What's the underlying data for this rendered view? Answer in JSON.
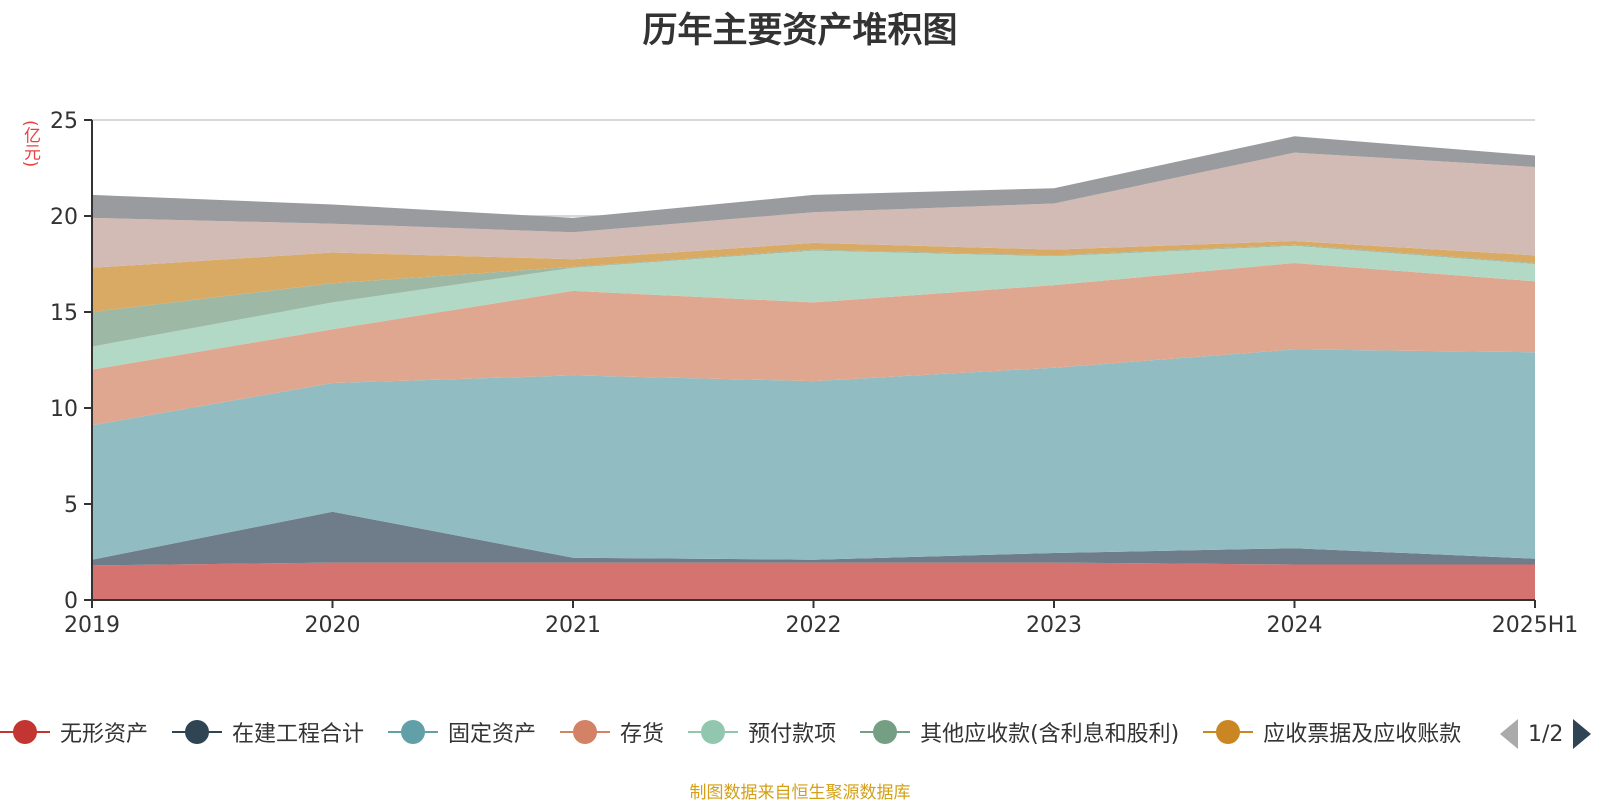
{
  "title": "历年主要资产堆积图",
  "unit": "(亿元)",
  "source": "制图数据来自恒生聚源数据库",
  "legend_page": "1/2",
  "chart_data": {
    "type": "area",
    "stacked": true,
    "categories": [
      "2019",
      "2020",
      "2021",
      "2022",
      "2023",
      "2024",
      "2025H1"
    ],
    "ylim": [
      0,
      25
    ],
    "yticks": [
      0,
      5,
      10,
      15,
      20,
      25
    ],
    "grid": true,
    "legend_position": "bottom",
    "series": [
      {
        "name": "无形资产",
        "color": "#c23531",
        "fill": "#d47370",
        "values": [
          1.8,
          1.95,
          1.95,
          1.95,
          1.95,
          1.85,
          1.85
        ],
        "in_legend": true
      },
      {
        "name": "在建工程合计",
        "color": "#2f4554",
        "fill": "#6e7d89",
        "values": [
          0.3,
          2.65,
          0.25,
          0.15,
          0.5,
          0.85,
          0.3
        ],
        "in_legend": true
      },
      {
        "name": "固定资产",
        "color": "#61a0a8",
        "fill": "#91bcc2",
        "values": [
          7.0,
          6.7,
          9.5,
          9.3,
          9.65,
          10.35,
          10.75
        ],
        "in_legend": true
      },
      {
        "name": "存货",
        "color": "#d48265",
        "fill": "#e0a790",
        "values": [
          2.9,
          2.8,
          4.4,
          4.1,
          4.3,
          4.5,
          3.7
        ],
        "in_legend": true
      },
      {
        "name": "预付款项",
        "color": "#91c7ae",
        "fill": "#b2d8c6",
        "values": [
          1.2,
          1.4,
          1.2,
          2.7,
          1.5,
          0.9,
          0.9
        ],
        "in_legend": true
      },
      {
        "name": "其他应收款(含利息和股利)",
        "color": "#749f83",
        "fill": "#9db9a6",
        "values": [
          1.8,
          1.0,
          0.05,
          0.05,
          0.05,
          0.05,
          0.05
        ],
        "in_legend": true
      },
      {
        "name": "应收票据及应收账款",
        "color": "#ca8622",
        "fill": "#d9aa64",
        "values": [
          2.3,
          1.6,
          0.4,
          0.35,
          0.3,
          0.2,
          0.4
        ],
        "in_legend": true
      },
      {
        "name": "",
        "color": "#bda29a",
        "fill": "#d2bbb4",
        "values": [
          2.6,
          1.5,
          1.4,
          1.6,
          2.4,
          4.6,
          4.6
        ],
        "in_legend": false
      },
      {
        "name": "",
        "color": "#6e7074",
        "fill": "#9a9b9e",
        "values": [
          1.2,
          1.0,
          0.75,
          0.9,
          0.8,
          0.85,
          0.6
        ],
        "in_legend": false
      }
    ]
  }
}
